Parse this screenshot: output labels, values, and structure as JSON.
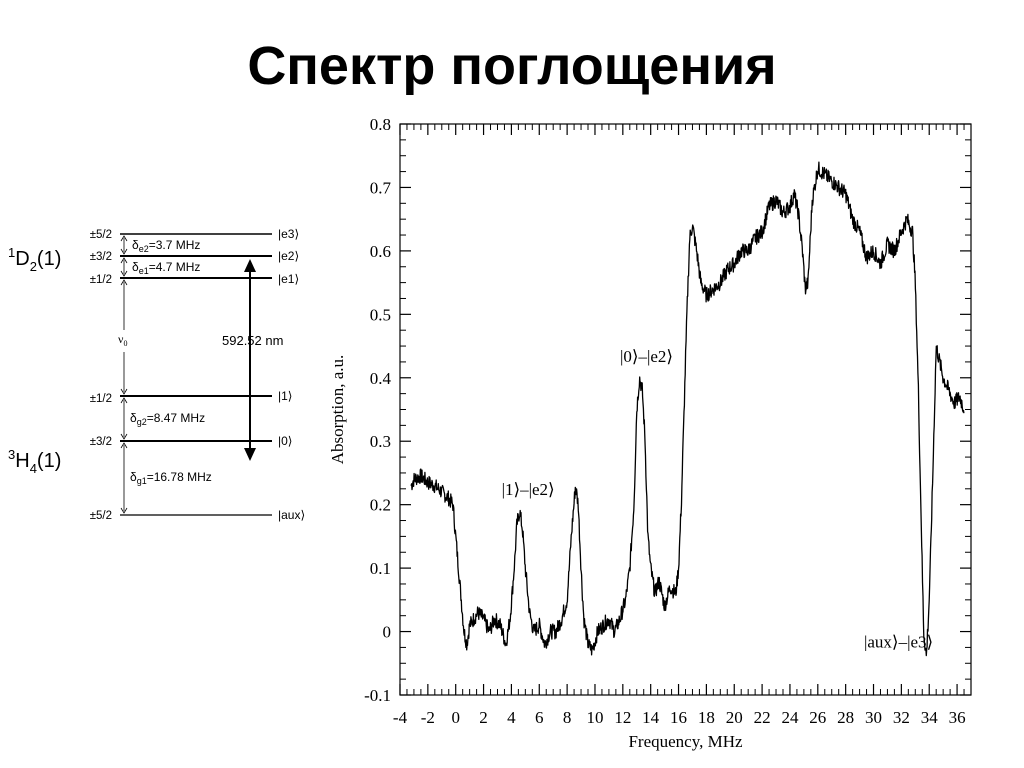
{
  "slide": {
    "title": "Спектр поглощения"
  },
  "level_diagram": {
    "upper_term": {
      "base": "D",
      "sup": "1",
      "sub": "2",
      "tail": "(1)"
    },
    "lower_term": {
      "base": "H",
      "sup": "3",
      "sub": "4",
      "tail": "(1)"
    },
    "levels": [
      {
        "spin": "±5/2",
        "state": "|e3⟩"
      },
      {
        "spin": "±3/2",
        "state": "|e2⟩"
      },
      {
        "spin": "±1/2",
        "state": "|e1⟩"
      },
      {
        "spin": "±1/2",
        "state": "|1⟩"
      },
      {
        "spin": "±3/2",
        "state": "|0⟩"
      },
      {
        "spin": "±5/2",
        "state": "|aux⟩"
      }
    ],
    "splittings": [
      {
        "sym": "δ",
        "sub": "e2",
        "text": "=3.7 MHz"
      },
      {
        "sym": "δ",
        "sub": "e1",
        "text": "=4.7 MHz"
      },
      {
        "sym": "δ",
        "sub": "g2",
        "text": "=8.47 MHz"
      },
      {
        "sym": "δ",
        "sub": "g1",
        "text": "=16.78 MHz"
      }
    ],
    "nu0": {
      "sym": "ν",
      "sub": "0"
    },
    "wavelength": "592.52 nm"
  },
  "chart_data": {
    "type": "line",
    "xlabel": "Frequency, MHz",
    "ylabel": "Absorption, a.u.",
    "xlim": [
      -4,
      37
    ],
    "ylim": [
      -0.1,
      0.8
    ],
    "xticks": [
      -4,
      -2,
      0,
      2,
      4,
      6,
      8,
      10,
      12,
      14,
      16,
      18,
      20,
      22,
      24,
      26,
      28,
      30,
      32,
      34,
      36
    ],
    "xtick_labels": [
      "-4",
      "-2",
      "0",
      "2",
      "4",
      "6",
      "8",
      "10",
      "12",
      "14",
      "16",
      "18",
      "20",
      "22",
      "24",
      "26",
      "28",
      "30",
      "32",
      "34",
      "36"
    ],
    "yticks": [
      -0.1,
      0,
      0.1,
      0.2,
      0.3,
      0.4,
      0.5,
      0.6,
      0.7,
      0.8
    ],
    "ytick_labels": [
      "-0.1",
      "0",
      "0.1",
      "0.2",
      "0.3",
      "0.4",
      "0.5",
      "0.6",
      "0.7",
      "0.8"
    ],
    "grid": false,
    "series": [
      {
        "x": [
          -3.2,
          -3.0,
          -2.5,
          -2.0,
          -1.5,
          -1.0,
          -0.5,
          -0.2,
          0.0,
          0.2,
          0.4,
          0.6,
          0.8,
          1.0,
          1.3,
          1.6,
          2.0,
          2.4,
          2.8,
          3.2,
          3.6,
          3.9,
          4.2,
          4.4,
          4.6,
          4.8,
          5.0,
          5.3,
          5.6,
          6.0,
          6.4,
          6.8,
          7.2,
          7.6,
          8.0,
          8.3,
          8.6,
          8.8,
          9.0,
          9.2,
          9.5,
          9.8,
          10.2,
          10.6,
          11.0,
          11.4,
          11.8,
          12.2,
          12.5,
          12.8,
          13.0,
          13.2,
          13.4,
          13.6,
          13.8,
          14.0,
          14.3,
          14.6,
          15.0,
          15.4,
          15.8,
          16.0,
          16.2,
          16.4,
          16.6,
          16.8,
          17.0,
          17.3,
          17.6,
          18.0,
          18.5,
          19.0,
          19.5,
          20.0,
          20.5,
          21.0,
          21.5,
          22.0,
          22.5,
          23.0,
          23.5,
          24.0,
          24.3,
          24.6,
          24.9,
          25.1,
          25.3,
          25.6,
          26.0,
          26.5,
          27.0,
          27.5,
          28.0,
          28.5,
          29.0,
          29.5,
          30.0,
          30.5,
          31.0,
          31.5,
          32.0,
          32.4,
          32.8,
          33.0,
          33.2,
          33.4,
          33.6,
          33.8,
          34.0,
          34.2,
          34.5,
          34.8,
          35.0,
          35.4,
          35.8,
          36.2,
          36.5
        ],
        "y": [
          0.23,
          0.24,
          0.245,
          0.235,
          0.23,
          0.22,
          0.21,
          0.2,
          0.15,
          0.1,
          0.05,
          0.0,
          -0.02,
          0.01,
          0.02,
          0.03,
          0.02,
          0.0,
          0.02,
          0.01,
          -0.02,
          0.02,
          0.1,
          0.17,
          0.19,
          0.16,
          0.1,
          0.03,
          0.0,
          0.01,
          -0.02,
          0.0,
          0.0,
          0.02,
          0.05,
          0.15,
          0.23,
          0.2,
          0.1,
          0.02,
          -0.02,
          -0.03,
          0.0,
          0.01,
          0.02,
          0.0,
          0.02,
          0.05,
          0.1,
          0.2,
          0.35,
          0.4,
          0.38,
          0.3,
          0.15,
          0.1,
          0.06,
          0.08,
          0.04,
          0.07,
          0.06,
          0.1,
          0.2,
          0.35,
          0.5,
          0.62,
          0.64,
          0.6,
          0.55,
          0.53,
          0.54,
          0.55,
          0.57,
          0.58,
          0.6,
          0.6,
          0.62,
          0.63,
          0.67,
          0.68,
          0.66,
          0.67,
          0.69,
          0.66,
          0.6,
          0.54,
          0.55,
          0.68,
          0.73,
          0.72,
          0.71,
          0.7,
          0.69,
          0.65,
          0.63,
          0.59,
          0.6,
          0.58,
          0.61,
          0.6,
          0.63,
          0.65,
          0.63,
          0.55,
          0.4,
          0.2,
          0.0,
          -0.04,
          0.05,
          0.2,
          0.45,
          0.42,
          0.4,
          0.38,
          0.36,
          0.37,
          0.35
        ]
      }
    ],
    "annotations": [
      {
        "text": "|1⟩–|e2⟩",
        "x": 5.2,
        "y": 0.215
      },
      {
        "text": "|0⟩–|e2⟩",
        "x": 13.7,
        "y": 0.425
      },
      {
        "text": "|aux⟩–|e3⟩",
        "x": 31.8,
        "y": -0.025
      }
    ]
  }
}
